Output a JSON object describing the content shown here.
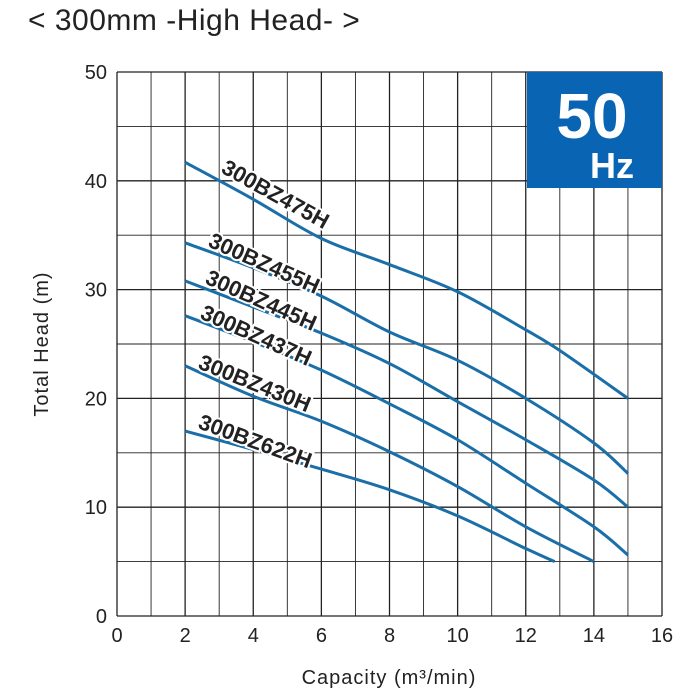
{
  "chart_data": {
    "type": "line",
    "title": "< 300mm -High Head- >",
    "xlabel": "Capacity (m³/min)",
    "ylabel": "Total Head (m)",
    "xlim": [
      0,
      16
    ],
    "ylim": [
      0,
      50
    ],
    "xticks": [
      0,
      2,
      4,
      6,
      8,
      10,
      12,
      14,
      16
    ],
    "yticks": [
      0,
      10,
      20,
      30,
      40,
      50
    ],
    "grid": true,
    "badge": {
      "value": "50",
      "unit": "Hz",
      "color": "#0a64b4"
    },
    "line_color": "#1a6fa8",
    "series": [
      {
        "name": "300BZ475H",
        "x": [
          2,
          4,
          6,
          8,
          10,
          12,
          13,
          15
        ],
        "y": [
          41.7,
          38.3,
          34.7,
          32.3,
          29.8,
          26.3,
          24.4,
          20.0
        ]
      },
      {
        "name": "300BZ455H",
        "x": [
          2,
          4,
          6,
          8,
          10,
          12,
          14,
          15
        ],
        "y": [
          34.3,
          32.0,
          29.4,
          26.1,
          23.5,
          20.0,
          15.9,
          13.1
        ]
      },
      {
        "name": "300BZ445H",
        "x": [
          2,
          4,
          6,
          8,
          10,
          12,
          14,
          15
        ],
        "y": [
          30.8,
          28.4,
          26.0,
          23.2,
          19.7,
          16.2,
          12.5,
          10.0
        ]
      },
      {
        "name": "300BZ437H",
        "x": [
          2,
          4,
          6,
          8,
          10,
          12,
          14,
          15
        ],
        "y": [
          27.6,
          25.2,
          22.6,
          19.5,
          16.2,
          12.2,
          8.2,
          5.6
        ]
      },
      {
        "name": "300BZ430H",
        "x": [
          2,
          4,
          6,
          8,
          10,
          12,
          14
        ],
        "y": [
          23.0,
          20.2,
          17.9,
          15.1,
          11.9,
          8.2,
          5.0
        ]
      },
      {
        "name": "300BZ622H",
        "x": [
          2,
          4,
          6,
          8,
          10,
          12,
          12.85
        ],
        "y": [
          17.0,
          15.3,
          13.5,
          11.6,
          9.2,
          6.2,
          5.0
        ]
      }
    ]
  }
}
